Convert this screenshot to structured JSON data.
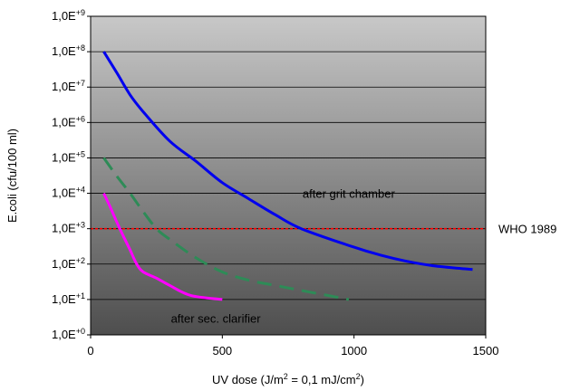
{
  "chart_data": {
    "type": "line",
    "xlabel": "UV dose (J/m² = 0,1 mJ/cm²)",
    "ylabel": "E.coli (cfu/100 ml)",
    "xlim": [
      0,
      1500
    ],
    "ylim_log10": [
      0,
      9
    ],
    "y_scale": "log",
    "grid": true,
    "x_ticks": [
      "0",
      "500",
      "1000",
      "1500"
    ],
    "y_ticks": [
      "1,0E+0",
      "1,0E+1",
      "1,0E+2",
      "1,0E+3",
      "1,0E+4",
      "1,0E+5",
      "1,0E+6",
      "1,0E+7",
      "1,0E+8",
      "1,0E+9"
    ],
    "series": [
      {
        "name": "after grit chamber",
        "color": "#0000ee",
        "style": "solid",
        "points": [
          [
            50,
            100000000
          ],
          [
            100,
            25000000
          ],
          [
            150,
            6000000
          ],
          [
            200,
            2000000
          ],
          [
            300,
            300000
          ],
          [
            400,
            80000
          ],
          [
            500,
            20000
          ],
          [
            600,
            7000
          ],
          [
            700,
            2500
          ],
          [
            800,
            1000
          ],
          [
            1000,
            300
          ],
          [
            1100,
            180
          ],
          [
            1200,
            120
          ],
          [
            1300,
            90
          ],
          [
            1450,
            70
          ]
        ]
      },
      {
        "name": "",
        "color": "#2e8b57",
        "style": "dashed",
        "points": [
          [
            50,
            100000
          ],
          [
            100,
            30000
          ],
          [
            150,
            10000
          ],
          [
            200,
            3000
          ],
          [
            250,
            1000
          ],
          [
            300,
            500
          ],
          [
            400,
            150
          ],
          [
            500,
            60
          ],
          [
            600,
            35
          ],
          [
            700,
            25
          ],
          [
            800,
            18
          ],
          [
            900,
            13
          ],
          [
            980,
            10
          ]
        ]
      },
      {
        "name": "after sec. clarifier",
        "color": "#ff00ff",
        "style": "solid",
        "points": [
          [
            50,
            10000
          ],
          [
            75,
            4000
          ],
          [
            100,
            1500
          ],
          [
            125,
            600
          ],
          [
            150,
            250
          ],
          [
            175,
            100
          ],
          [
            200,
            60
          ],
          [
            250,
            40
          ],
          [
            300,
            25
          ],
          [
            380,
            13
          ],
          [
            500,
            10
          ]
        ]
      }
    ],
    "reference_lines": [
      {
        "label": "WHO 1989",
        "y": 1000,
        "color": "#ff0000",
        "style": "dotted"
      }
    ],
    "annotations": [
      {
        "text": "after grit chamber",
        "x": 980,
        "y": 10000
      },
      {
        "text": "after sec. clarifier",
        "x": 475,
        "y": 3
      }
    ]
  }
}
